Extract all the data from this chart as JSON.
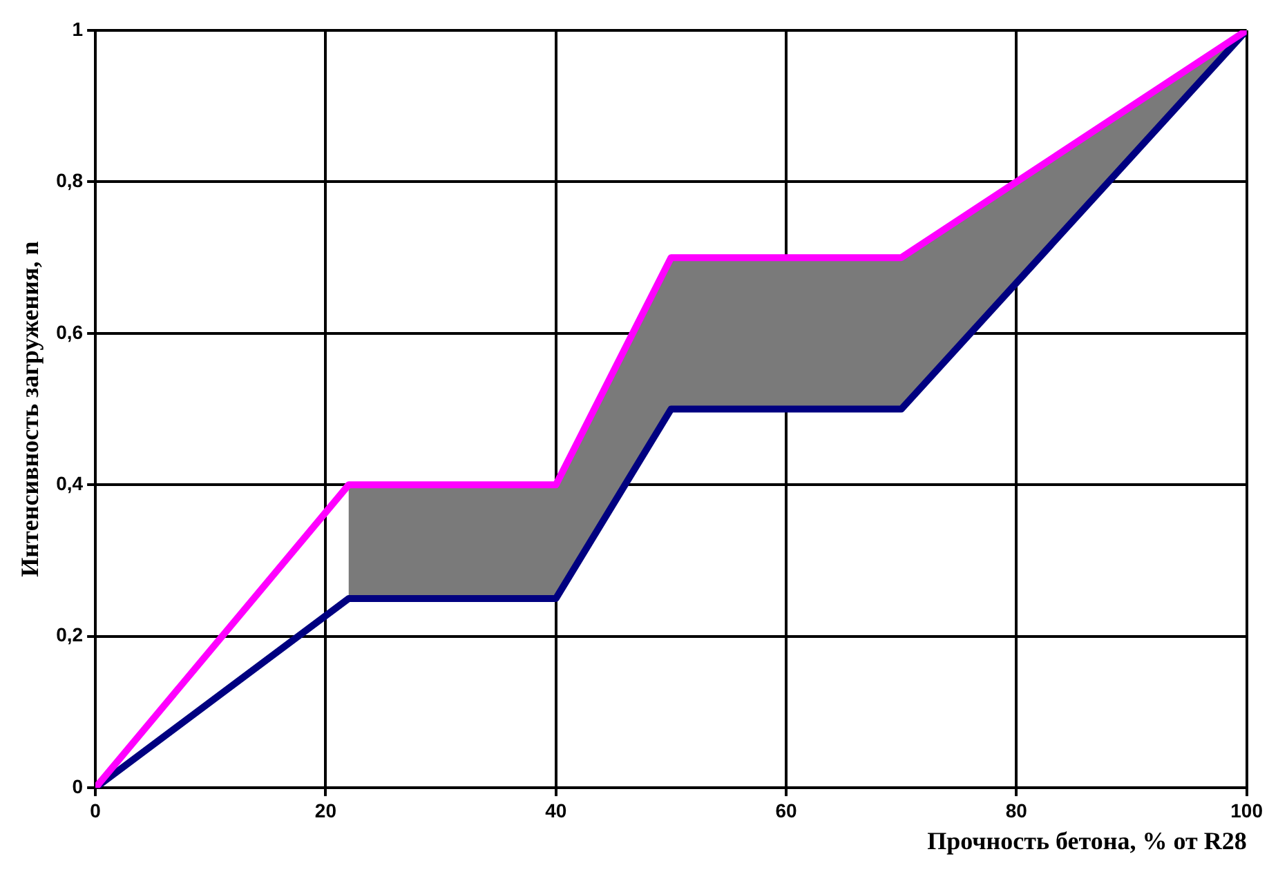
{
  "chart_data": {
    "type": "line",
    "xlabel": "Прочность бетона, % от R28",
    "ylabel": "Интенсивность загружения, n",
    "xlim": [
      0,
      100
    ],
    "xticks": [
      0,
      20,
      40,
      60,
      80,
      100
    ],
    "ylim": [
      0,
      1
    ],
    "yticks": [
      0,
      {
        "value": 0.2,
        "label": "0,2"
      },
      {
        "value": 0.4,
        "label": "0,4"
      },
      {
        "value": 0.6,
        "label": "0,6"
      },
      {
        "value": 0.8,
        "label": "0,8"
      },
      1
    ],
    "grid": true,
    "legend": false,
    "marker": "none",
    "line_style": "solid",
    "series": [
      {
        "color": "#ff00ff",
        "x": [
          0,
          22,
          40,
          50,
          70,
          100
        ],
        "values": [
          0,
          0.4,
          0.4,
          0.7,
          0.7,
          1
        ],
        "lower": [
          null,
          0.25,
          0.25,
          0.5,
          0.5,
          1
        ],
        "upper": [
          null,
          0.4,
          0.4,
          0.7,
          0.7,
          1
        ]
      },
      {
        "color": "#000080",
        "x": [
          0,
          22,
          40,
          50,
          70,
          100
        ],
        "values": [
          0,
          0.25,
          0.25,
          0.5,
          0.5,
          1
        ]
      }
    ]
  }
}
